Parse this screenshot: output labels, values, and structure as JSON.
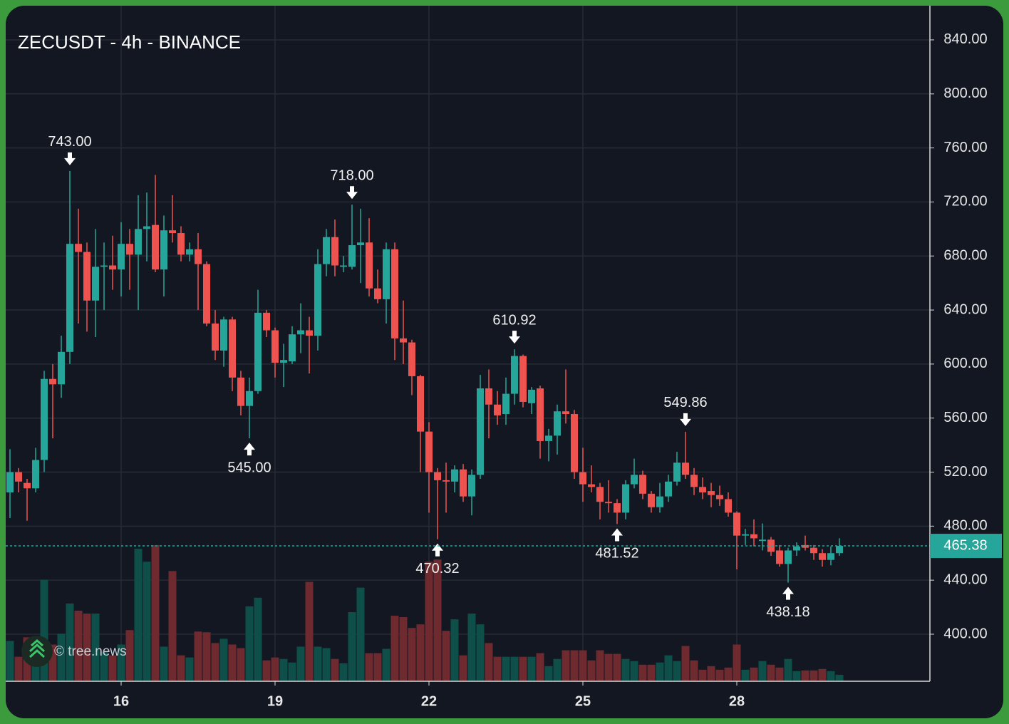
{
  "chart_data": {
    "type": "candlestick",
    "title": "ZECUSDT - 4h - BINANCE",
    "watermark": "© tree.news",
    "categories": [
      null,
      null,
      null,
      null,
      null,
      null,
      null,
      null,
      null,
      null,
      null,
      null,
      null,
      "16",
      null,
      null,
      null,
      null,
      null,
      null,
      null,
      null,
      null,
      null,
      null,
      null,
      null,
      null,
      null,
      null,
      null,
      "19",
      null,
      null,
      null,
      null,
      null,
      null,
      null,
      null,
      null,
      null,
      null,
      null,
      null,
      null,
      null,
      null,
      null,
      "22",
      null,
      null,
      null,
      null,
      null,
      null,
      null,
      null,
      null,
      null,
      null,
      null,
      null,
      null,
      null,
      null,
      null,
      "25",
      null,
      null,
      null,
      null,
      null,
      null,
      null,
      null,
      null,
      null,
      null,
      null,
      null,
      null,
      null,
      null,
      null,
      "28",
      null,
      null,
      null,
      null,
      null,
      null,
      null,
      null,
      null,
      null,
      null,
      null
    ],
    "open": [
      505,
      520,
      512,
      508,
      529,
      589,
      585,
      609,
      689,
      683,
      647,
      672,
      673,
      670,
      689,
      681,
      700,
      703,
      670,
      699,
      697,
      681,
      685,
      674,
      630,
      610,
      633,
      590,
      569,
      580,
      638,
      625,
      601,
      602,
      622,
      625,
      621,
      674,
      694,
      672,
      672,
      688,
      690,
      656,
      648,
      685,
      619,
      616,
      591,
      550,
      520,
      514,
      513,
      522,
      502,
      518,
      582,
      570,
      563,
      578,
      606,
      571,
      582,
      543,
      547,
      565,
      563,
      520,
      511,
      509,
      498,
      497,
      490,
      511,
      518,
      504,
      494,
      502,
      513,
      527,
      518,
      509,
      506,
      503,
      500,
      490,
      473,
      474,
      469,
      470,
      462,
      452,
      462,
      466,
      464,
      460,
      455,
      460
    ],
    "high": [
      537,
      523,
      515,
      538,
      595,
      600,
      621,
      743,
      715,
      690,
      700,
      690,
      695,
      705,
      700,
      725,
      727,
      740,
      710,
      725,
      702,
      690,
      697,
      676,
      640,
      635,
      635,
      595,
      590,
      655,
      640,
      627,
      615,
      628,
      645,
      635,
      685,
      700,
      707,
      680,
      718,
      715,
      708,
      670,
      690,
      690,
      647,
      618,
      592,
      557,
      523,
      527,
      525,
      526,
      522,
      592,
      596,
      580,
      590,
      610.92,
      607,
      583,
      584,
      552,
      570,
      596,
      566,
      538,
      525,
      512,
      514,
      500,
      514,
      530,
      521,
      506,
      512,
      518,
      535,
      549.86,
      523,
      516,
      512,
      510,
      505,
      491,
      478,
      485,
      482,
      472,
      466,
      464,
      468,
      473,
      466,
      463,
      465,
      471
    ],
    "low": [
      486,
      505,
      484,
      505,
      520,
      545,
      575,
      600,
      630,
      624,
      620,
      640,
      655,
      650,
      655,
      640,
      676,
      668,
      650,
      690,
      676,
      676,
      640,
      628,
      603,
      598,
      580,
      562,
      545,
      578,
      620,
      590,
      583,
      600,
      608,
      593,
      610,
      665,
      665,
      668,
      670,
      660,
      650,
      645,
      630,
      603,
      600,
      577,
      520,
      490,
      470.32,
      490,
      505,
      498,
      488,
      515,
      545,
      555,
      555,
      570,
      568,
      563,
      530,
      528,
      533,
      556,
      515,
      498,
      505,
      485,
      490,
      481.52,
      485,
      508,
      500,
      490,
      490,
      498,
      510,
      515,
      503,
      500,
      494,
      495,
      487,
      448,
      466,
      465,
      462,
      458,
      450,
      438.18,
      458,
      462,
      455,
      450,
      451,
      458
    ],
    "close": [
      520,
      513,
      508,
      529,
      589,
      585,
      609,
      689,
      683,
      647,
      672,
      673,
      670,
      689,
      681,
      700,
      702,
      670,
      699,
      697,
      681,
      685,
      674,
      630,
      610,
      633,
      590,
      569,
      580,
      638,
      625,
      601,
      603,
      622,
      625,
      621,
      674,
      694,
      673,
      673,
      688,
      690,
      656,
      648,
      685,
      619,
      616,
      591,
      550,
      520,
      514,
      513,
      522,
      502,
      518,
      582,
      570,
      562,
      578,
      606,
      572,
      581,
      543,
      547,
      565,
      563,
      520,
      511,
      509,
      498,
      497,
      490,
      511,
      518,
      504,
      494,
      502,
      513,
      527,
      518,
      509,
      505,
      503,
      500,
      490,
      473,
      474,
      471,
      470,
      461,
      452,
      462,
      465,
      464,
      460,
      455,
      460,
      465.38
    ],
    "volume": [
      55,
      33,
      60,
      55,
      140,
      50,
      65,
      107,
      97,
      93,
      93,
      40,
      35,
      50,
      70,
      183,
      165,
      188,
      47,
      152,
      35,
      32,
      68,
      67,
      52,
      58,
      50,
      45,
      103,
      115,
      28,
      32,
      30,
      25,
      47,
      137,
      47,
      45,
      30,
      24,
      95,
      129,
      38,
      38,
      44,
      90,
      88,
      73,
      78,
      165,
      168,
      69,
      85,
      35,
      93,
      78,
      52,
      33,
      33,
      33,
      33,
      33,
      38,
      20,
      30,
      42,
      42,
      42,
      28,
      42,
      37,
      37,
      30,
      27,
      22,
      22,
      25,
      35,
      27,
      48,
      28,
      15,
      20,
      15,
      18,
      50,
      15,
      18,
      27,
      22,
      18,
      30,
      13,
      14,
      14,
      16,
      13,
      8
    ],
    "up_color": "#26a69a",
    "down_color": "#ef5350",
    "volume_up_color": "#0e4f4a",
    "volume_down_color": "#6e2a2e",
    "ylim": [
      365.7,
      865.3
    ],
    "yticks": [
      {
        "value": 400,
        "label": "400.00"
      },
      {
        "value": 440,
        "label": "440.00"
      },
      {
        "value": 480,
        "label": "480.00"
      },
      {
        "value": 520,
        "label": "520.00"
      },
      {
        "value": 560,
        "label": "560.00"
      },
      {
        "value": 600,
        "label": "600.00"
      },
      {
        "value": 640,
        "label": "640.00"
      },
      {
        "value": 680,
        "label": "680.00"
      },
      {
        "value": 720,
        "label": "720.00"
      },
      {
        "value": 760,
        "label": "760.00"
      },
      {
        "value": 800,
        "label": "800.00"
      },
      {
        "value": 840,
        "label": "840.00"
      }
    ],
    "grid": true,
    "last_price": {
      "value": 465.38,
      "label": "465.38",
      "color": "#26a69a"
    },
    "annotations": [
      {
        "value": 743,
        "label": "743.00",
        "index": 7,
        "side": "high"
      },
      {
        "value": 545,
        "label": "545.00",
        "index": 28,
        "side": "low"
      },
      {
        "value": 718,
        "label": "718.00",
        "index": 40,
        "side": "high"
      },
      {
        "value": 470.32,
        "label": "470.32",
        "index": 50,
        "side": "low"
      },
      {
        "value": 610.92,
        "label": "610.92",
        "index": 59,
        "side": "high"
      },
      {
        "value": 481.52,
        "label": "481.52",
        "index": 71,
        "side": "low"
      },
      {
        "value": 549.86,
        "label": "549.86",
        "index": 79,
        "side": "high"
      },
      {
        "value": 438.18,
        "label": "438.18",
        "index": 91,
        "side": "low"
      }
    ]
  }
}
